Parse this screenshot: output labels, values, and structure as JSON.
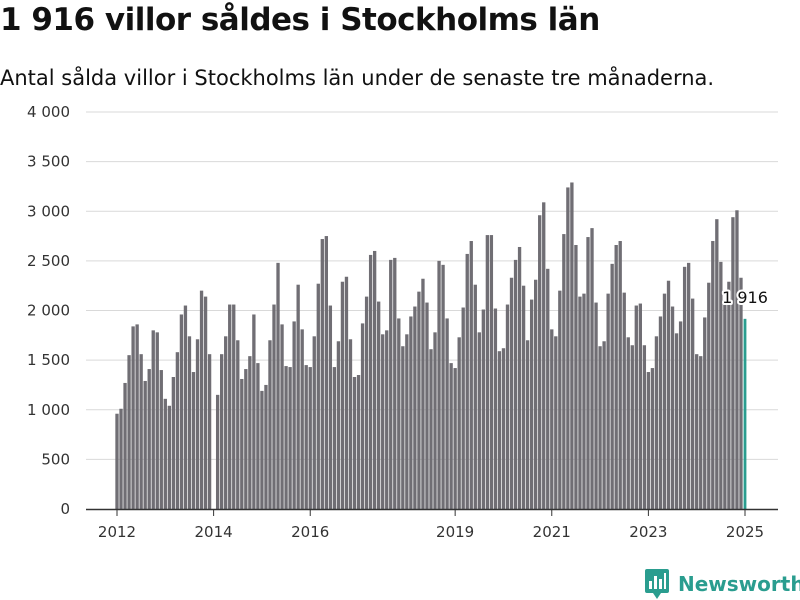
{
  "header": {
    "title": "1 916 villor såldes i Stockholms län",
    "subtitle": "Antal sålda villor i Stockholms län under de senaste tre månaderna."
  },
  "brand": {
    "name": "Newsworthy",
    "logo_icon": "bar-chart-pin-icon"
  },
  "colors": {
    "bar": "#706e74",
    "highlight": "#2a9d8f",
    "grid": "#d9d9d9",
    "axis": "#333333",
    "brand": "#2a9d8f"
  },
  "chart_data": {
    "type": "bar",
    "title": "",
    "xlabel": "",
    "ylabel": "",
    "ylim": [
      0,
      4000
    ],
    "y_ticks": [
      0,
      500,
      1000,
      1500,
      2000,
      2500,
      3000,
      3500,
      4000
    ],
    "y_tick_labels": [
      "0",
      "500",
      "1 000",
      "1 500",
      "2 000",
      "2 500",
      "3 000",
      "3 500",
      "4 000"
    ],
    "x_start": "2012-01",
    "x_end": "2025-01",
    "x_tick_dates": [
      "2012-01",
      "2014-01",
      "2016-01",
      "2019-01",
      "2021-01",
      "2023-01",
      "2025-01"
    ],
    "x_tick_labels": [
      "2012",
      "2014",
      "2016",
      "2019",
      "2021",
      "2023",
      "2025"
    ],
    "grid": true,
    "series": [
      {
        "values": [
          960,
          1010,
          1270,
          1550,
          1840,
          1860,
          1560,
          1290,
          1410,
          1800,
          1780,
          1400,
          1110,
          1040,
          1330,
          1580,
          1960,
          2050,
          1740,
          1380,
          1710,
          2200,
          2140,
          1560,
          null,
          1150,
          1560,
          1740,
          2060,
          2060,
          1700,
          1310,
          1410,
          1540,
          1960,
          1470,
          1190,
          1250,
          1700,
          2060,
          2480,
          1860,
          1440,
          1430,
          1890,
          2260,
          1810,
          1450,
          1430,
          1740,
          2270,
          2720,
          2750,
          2050,
          1430,
          1690,
          2290,
          2340,
          1710,
          1330,
          1350,
          1870,
          2140,
          2560,
          2600,
          2090,
          1760,
          1800,
          2510,
          2530,
          1920,
          1640,
          1760,
          1940,
          2040,
          2190,
          2320,
          2080,
          1610,
          1780,
          2500,
          2460,
          1920,
          1470,
          1420,
          1730,
          2030,
          2570,
          2700,
          2260,
          1780,
          2010,
          2760,
          2760,
          2020,
          1590,
          1620,
          2060,
          2330,
          2510,
          2640,
          2250,
          1700,
          2110,
          2310,
          2960,
          3090,
          2420,
          1810,
          1740,
          2200,
          2770,
          3240,
          3290,
          2660,
          2140,
          2170,
          2740,
          2830,
          2080,
          1640,
          1690,
          2170,
          2470,
          2660,
          2700,
          2180,
          1730,
          1650,
          2050,
          2070,
          1650,
          1380,
          1420,
          1740,
          1940,
          2170,
          2300,
          2040,
          1770,
          1890,
          2440,
          2480,
          2120,
          1560,
          1540,
          1930,
          2280,
          2700,
          2920,
          2490,
          2090,
          2290,
          2940,
          3010,
          2330
        ],
        "highlight": {
          "date": "2025-01",
          "value": 1916,
          "label": "1 916"
        }
      }
    ]
  }
}
